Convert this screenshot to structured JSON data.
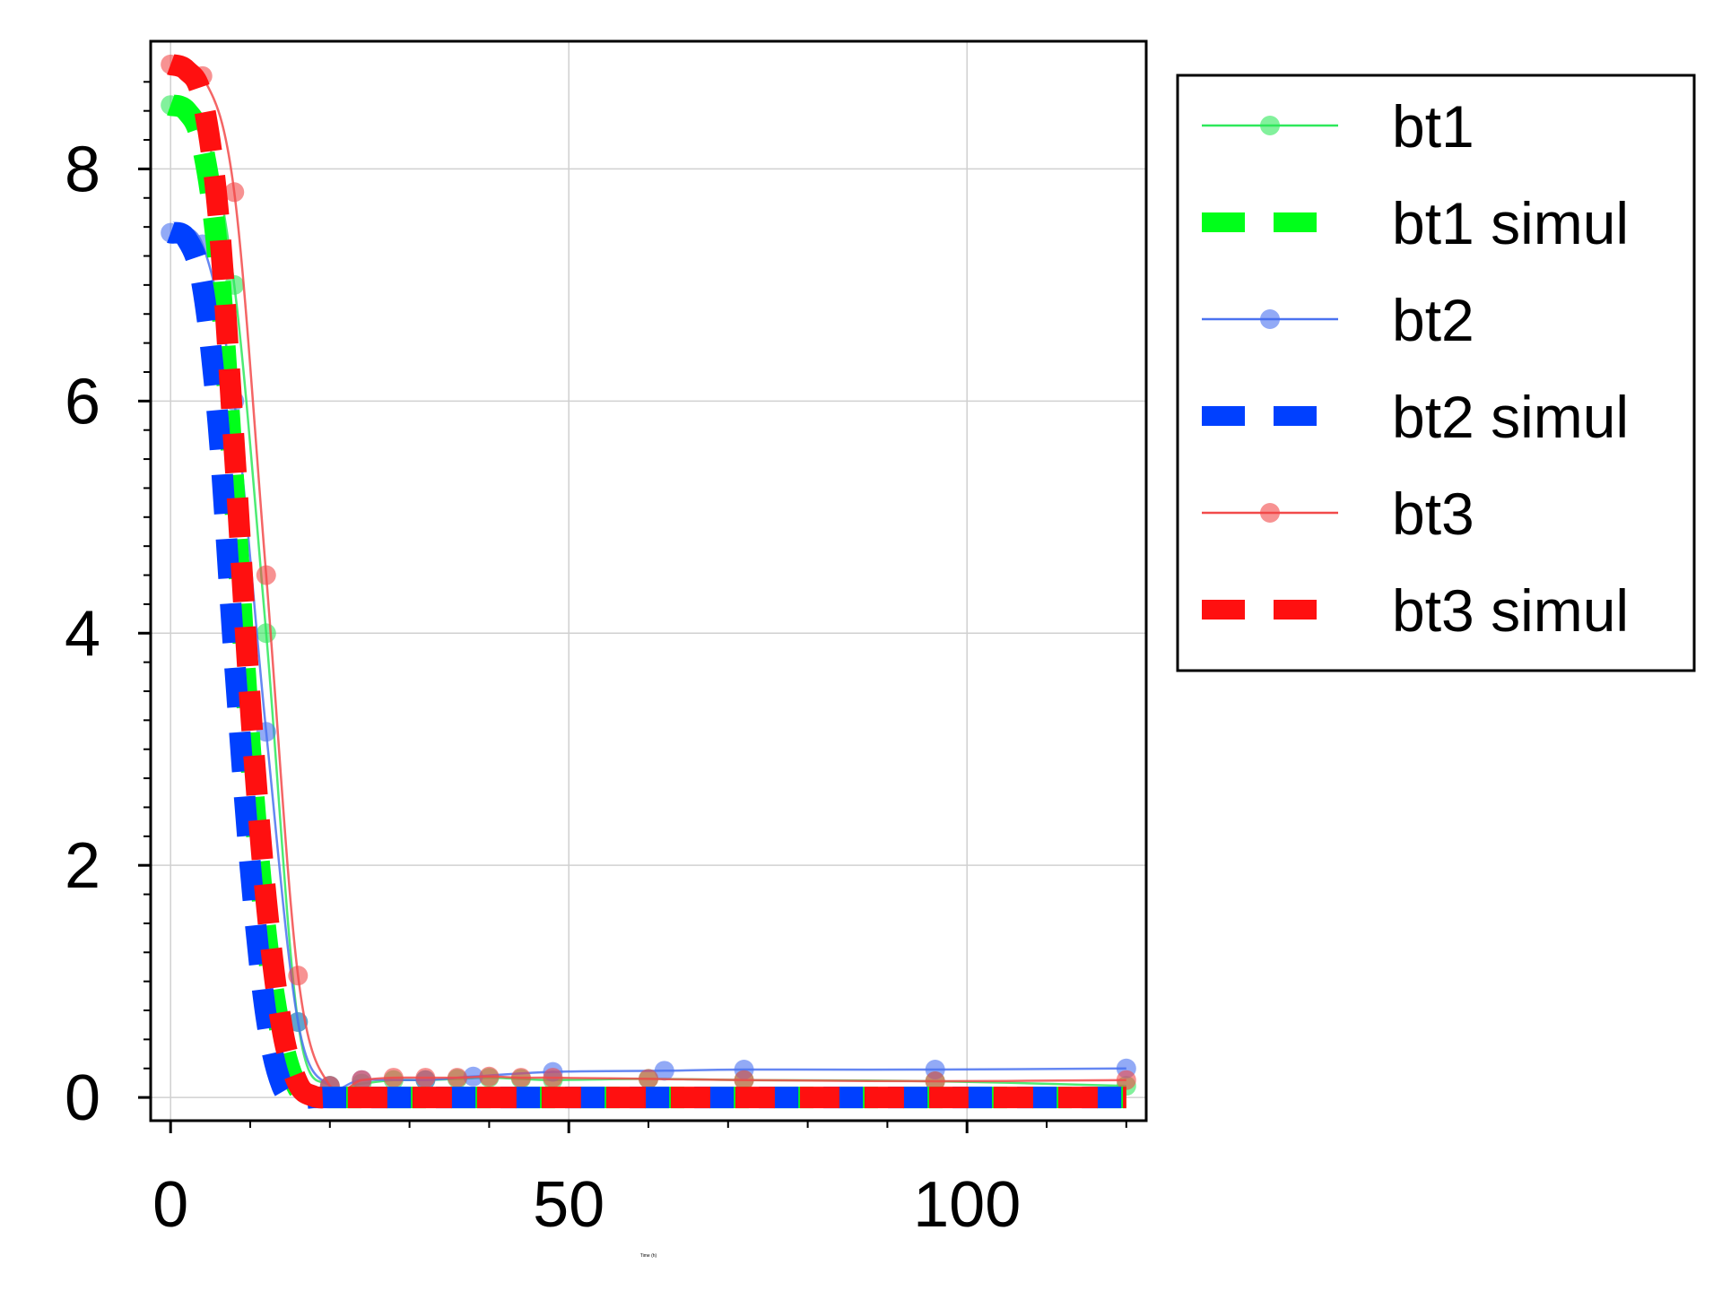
{
  "chart_data": {
    "type": "line",
    "title": "",
    "xlabel": "Time (h)",
    "ylabel": "",
    "xlim": [
      -2.5,
      122.5
    ],
    "ylim": [
      -0.2,
      9.1
    ],
    "xticks": [
      0,
      50,
      100
    ],
    "xtick_labels": [
      "0",
      "50",
      "100"
    ],
    "yticks": [
      0,
      2,
      4,
      6,
      8
    ],
    "ytick_labels": [
      "0",
      "2",
      "4",
      "6",
      "8"
    ],
    "grid": true,
    "legend_position": "outside-right-top",
    "series": [
      {
        "name": "bt1",
        "style": "line-markers",
        "color": "#2ee85a",
        "x": [
          0,
          4,
          8,
          12,
          16,
          20,
          24,
          28,
          32,
          36,
          40,
          44,
          48,
          60,
          72,
          96,
          120
        ],
        "y": [
          8.55,
          8.4,
          7.0,
          4.0,
          0.65,
          0.1,
          0.12,
          0.15,
          0.15,
          0.16,
          0.17,
          0.16,
          0.15,
          0.16,
          0.15,
          0.14,
          0.1
        ]
      },
      {
        "name": "bt1 simul",
        "style": "dashed",
        "color": "#00ff1a",
        "x": [
          0,
          2,
          4,
          6,
          8,
          10,
          12,
          14,
          16,
          18,
          20,
          24,
          30,
          40,
          60,
          80,
          100,
          120
        ],
        "y": [
          8.55,
          8.5,
          8.2,
          7.2,
          5.2,
          3.0,
          1.4,
          0.5,
          0.08,
          0.01,
          0.0,
          0.0,
          0.0,
          0.0,
          0.0,
          0.0,
          0.0,
          0.0
        ]
      },
      {
        "name": "bt2",
        "style": "line-markers",
        "color": "#4a72f0",
        "x": [
          0,
          4,
          8,
          12,
          16,
          20,
          24,
          32,
          38,
          48,
          62,
          72,
          96,
          120
        ],
        "y": [
          7.45,
          7.35,
          6.0,
          3.15,
          0.65,
          0.1,
          0.15,
          0.15,
          0.18,
          0.22,
          0.23,
          0.24,
          0.24,
          0.25
        ]
      },
      {
        "name": "bt2 simul",
        "style": "dashed",
        "color": "#0040ff",
        "x": [
          0,
          2,
          4,
          6,
          8,
          10,
          12,
          14,
          16,
          18,
          20,
          24,
          30,
          40,
          60,
          80,
          100,
          120
        ],
        "y": [
          7.45,
          7.4,
          7.0,
          5.8,
          3.8,
          2.0,
          0.7,
          0.1,
          0.0,
          0.0,
          0.0,
          0.0,
          0.0,
          0.0,
          0.0,
          0.0,
          0.0,
          0.0
        ]
      },
      {
        "name": "bt3",
        "style": "line-markers",
        "color": "#f24a4a",
        "x": [
          0,
          4,
          8,
          12,
          16,
          20,
          24,
          28,
          32,
          36,
          40,
          44,
          48,
          60,
          72,
          96,
          120
        ],
        "y": [
          8.9,
          8.8,
          7.8,
          4.5,
          1.05,
          0.1,
          0.15,
          0.17,
          0.17,
          0.17,
          0.18,
          0.17,
          0.17,
          0.16,
          0.15,
          0.14,
          0.15
        ]
      },
      {
        "name": "bt3 simul",
        "style": "dashed",
        "color": "#ff1010",
        "x": [
          0,
          2,
          4,
          6,
          8,
          10,
          12,
          14,
          16,
          18,
          20,
          24,
          30,
          40,
          60,
          80,
          100,
          120
        ],
        "y": [
          8.9,
          8.85,
          8.6,
          7.6,
          5.6,
          3.4,
          1.7,
          0.6,
          0.12,
          0.01,
          0.0,
          0.0,
          0.0,
          0.0,
          0.0,
          0.0,
          0.0,
          0.0
        ]
      }
    ]
  }
}
